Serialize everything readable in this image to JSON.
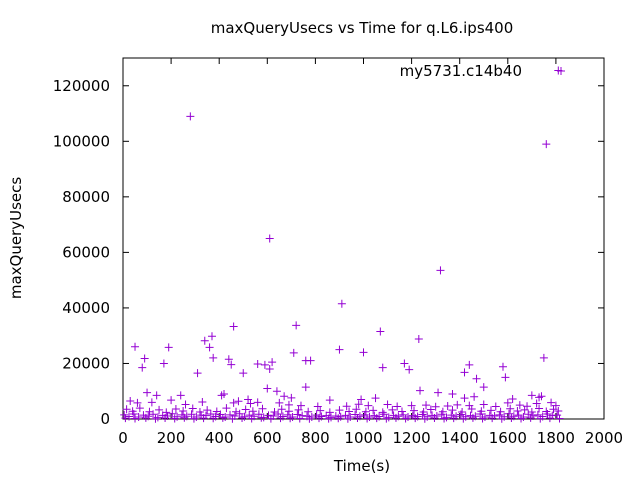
{
  "chart_data": {
    "type": "scatter",
    "title": "maxQueryUsecs vs Time for q.L6.ips400",
    "xlabel": "Time(s)",
    "ylabel": "maxQueryUsecs",
    "xlim": [
      0,
      2000
    ],
    "ylim": [
      0,
      130000
    ],
    "xticks": [
      0,
      200,
      400,
      600,
      800,
      1000,
      1200,
      1400,
      1600,
      1800,
      2000
    ],
    "yticks": [
      0,
      20000,
      40000,
      60000,
      80000,
      100000,
      120000
    ],
    "grid": false,
    "legend_position": "top-right",
    "series": [
      {
        "name": "my5731.c14b40",
        "color": "#9400d3",
        "marker": "plus",
        "points": [
          [
            280,
            109000
          ],
          [
            610,
            65000
          ],
          [
            1320,
            53500
          ],
          [
            1810,
            125500
          ],
          [
            1760,
            99000
          ],
          [
            910,
            41500
          ],
          [
            1070,
            31500
          ],
          [
            720,
            33700
          ],
          [
            460,
            33300
          ],
          [
            370,
            29800
          ],
          [
            340,
            28200
          ],
          [
            1230,
            28800
          ],
          [
            360,
            25800
          ],
          [
            375,
            22000
          ],
          [
            50,
            26000
          ],
          [
            190,
            25800
          ],
          [
            900,
            25000
          ],
          [
            1000,
            24000
          ],
          [
            710,
            23800
          ],
          [
            90,
            21800
          ],
          [
            170,
            20000
          ],
          [
            80,
            18500
          ],
          [
            560,
            19800
          ],
          [
            590,
            19500
          ],
          [
            610,
            18000
          ],
          [
            620,
            20500
          ],
          [
            440,
            21500
          ],
          [
            450,
            19600
          ],
          [
            760,
            21000
          ],
          [
            780,
            21000
          ],
          [
            1170,
            20000
          ],
          [
            1190,
            17800
          ],
          [
            1080,
            18500
          ],
          [
            1440,
            19500
          ],
          [
            1420,
            16800
          ],
          [
            1580,
            18800
          ],
          [
            1590,
            15000
          ],
          [
            1750,
            22000
          ],
          [
            500,
            16500
          ],
          [
            310,
            16500
          ],
          [
            1470,
            14500
          ],
          [
            1500,
            11500
          ],
          [
            760,
            11500
          ],
          [
            600,
            11000
          ],
          [
            1235,
            10200
          ],
          [
            1310,
            9500
          ],
          [
            640,
            10000
          ],
          [
            100,
            9500
          ],
          [
            140,
            8500
          ],
          [
            410,
            8500
          ],
          [
            420,
            9000
          ],
          [
            670,
            8200
          ],
          [
            1370,
            9000
          ],
          [
            1700,
            8500
          ],
          [
            240,
            8500
          ],
          [
            700,
            7600
          ],
          [
            1420,
            7500
          ],
          [
            1460,
            8000
          ],
          [
            1620,
            7200
          ],
          [
            1730,
            7800
          ],
          [
            1740,
            8200
          ],
          [
            1050,
            7500
          ],
          [
            520,
            7000
          ],
          [
            860,
            6800
          ],
          [
            990,
            7000
          ],
          [
            30,
            6500
          ],
          [
            60,
            5800
          ],
          [
            120,
            6000
          ],
          [
            200,
            6800
          ],
          [
            260,
            5200
          ],
          [
            330,
            6100
          ],
          [
            460,
            5800
          ],
          [
            480,
            6400
          ],
          [
            530,
            5600
          ],
          [
            560,
            6000
          ],
          [
            650,
            5800
          ],
          [
            690,
            5100
          ],
          [
            740,
            4800
          ],
          [
            810,
            4500
          ],
          [
            930,
            4600
          ],
          [
            980,
            5300
          ],
          [
            1020,
            4800
          ],
          [
            1100,
            5200
          ],
          [
            1140,
            4500
          ],
          [
            1200,
            4800
          ],
          [
            1260,
            5000
          ],
          [
            1300,
            4400
          ],
          [
            1350,
            4700
          ],
          [
            1390,
            5100
          ],
          [
            1440,
            4800
          ],
          [
            1500,
            5200
          ],
          [
            1550,
            4500
          ],
          [
            1600,
            5800
          ],
          [
            1650,
            5000
          ],
          [
            1680,
            4600
          ],
          [
            1720,
            5600
          ],
          [
            1780,
            5900
          ],
          [
            1800,
            4800
          ],
          [
            15,
            3500
          ],
          [
            40,
            2800
          ],
          [
            70,
            3900
          ],
          [
            110,
            2600
          ],
          [
            150,
            3300
          ],
          [
            180,
            2400
          ],
          [
            220,
            3600
          ],
          [
            250,
            2900
          ],
          [
            290,
            3800
          ],
          [
            320,
            2500
          ],
          [
            350,
            3200
          ],
          [
            390,
            2700
          ],
          [
            430,
            3900
          ],
          [
            470,
            2600
          ],
          [
            510,
            3400
          ],
          [
            540,
            2800
          ],
          [
            580,
            3700
          ],
          [
            630,
            2500
          ],
          [
            660,
            3500
          ],
          [
            690,
            2800
          ],
          [
            730,
            3300
          ],
          [
            770,
            2600
          ],
          [
            820,
            3000
          ],
          [
            860,
            2400
          ],
          [
            900,
            3200
          ],
          [
            940,
            2700
          ],
          [
            970,
            3500
          ],
          [
            1010,
            2600
          ],
          [
            1040,
            3100
          ],
          [
            1080,
            2400
          ],
          [
            1120,
            3300
          ],
          [
            1160,
            2700
          ],
          [
            1210,
            3000
          ],
          [
            1250,
            2500
          ],
          [
            1280,
            3400
          ],
          [
            1330,
            2600
          ],
          [
            1370,
            3200
          ],
          [
            1410,
            2500
          ],
          [
            1450,
            3600
          ],
          [
            1490,
            2800
          ],
          [
            1530,
            3100
          ],
          [
            1570,
            2600
          ],
          [
            1610,
            3700
          ],
          [
            1640,
            2900
          ],
          [
            1670,
            3300
          ],
          [
            1700,
            2500
          ],
          [
            1730,
            3800
          ],
          [
            1760,
            2700
          ],
          [
            1790,
            3500
          ],
          [
            1810,
            2900
          ],
          [
            5,
            1500
          ],
          [
            25,
            900
          ],
          [
            45,
            1800
          ],
          [
            65,
            700
          ],
          [
            85,
            1400
          ],
          [
            105,
            1000
          ],
          [
            125,
            1700
          ],
          [
            145,
            600
          ],
          [
            165,
            1300
          ],
          [
            185,
            1100
          ],
          [
            205,
            1900
          ],
          [
            225,
            800
          ],
          [
            245,
            1500
          ],
          [
            265,
            1000
          ],
          [
            285,
            1700
          ],
          [
            305,
            700
          ],
          [
            325,
            1400
          ],
          [
            345,
            1200
          ],
          [
            365,
            1800
          ],
          [
            385,
            900
          ],
          [
            405,
            1600
          ],
          [
            425,
            700
          ],
          [
            445,
            1500
          ],
          [
            465,
            1100
          ],
          [
            485,
            1900
          ],
          [
            505,
            800
          ],
          [
            525,
            1400
          ],
          [
            545,
            1000
          ],
          [
            565,
            1700
          ],
          [
            585,
            600
          ],
          [
            605,
            1300
          ],
          [
            625,
            1100
          ],
          [
            645,
            1800
          ],
          [
            665,
            900
          ],
          [
            685,
            1500
          ],
          [
            705,
            700
          ],
          [
            725,
            1600
          ],
          [
            745,
            1200
          ],
          [
            765,
            1000
          ],
          [
            785,
            700
          ],
          [
            805,
            1400
          ],
          [
            825,
            900
          ],
          [
            845,
            1200
          ],
          [
            865,
            600
          ],
          [
            885,
            1100
          ],
          [
            905,
            800
          ],
          [
            925,
            1300
          ],
          [
            945,
            700
          ],
          [
            965,
            1600
          ],
          [
            985,
            1000
          ],
          [
            1005,
            1500
          ],
          [
            1025,
            700
          ],
          [
            1045,
            1200
          ],
          [
            1065,
            900
          ],
          [
            1085,
            1700
          ],
          [
            1105,
            600
          ],
          [
            1125,
            1300
          ],
          [
            1145,
            1000
          ],
          [
            1165,
            1500
          ],
          [
            1185,
            700
          ],
          [
            1205,
            1200
          ],
          [
            1225,
            900
          ],
          [
            1245,
            1600
          ],
          [
            1265,
            800
          ],
          [
            1285,
            1300
          ],
          [
            1305,
            1100
          ],
          [
            1325,
            1700
          ],
          [
            1345,
            600
          ],
          [
            1365,
            1400
          ],
          [
            1385,
            1000
          ],
          [
            1405,
            1600
          ],
          [
            1425,
            800
          ],
          [
            1445,
            1200
          ],
          [
            1465,
            1000
          ],
          [
            1485,
            1800
          ],
          [
            1505,
            700
          ],
          [
            1525,
            1300
          ],
          [
            1545,
            1100
          ],
          [
            1565,
            1500
          ],
          [
            1585,
            800
          ],
          [
            1605,
            1900
          ],
          [
            1625,
            1000
          ],
          [
            1645,
            1400
          ],
          [
            1665,
            700
          ],
          [
            1685,
            1700
          ],
          [
            1705,
            1100
          ],
          [
            1725,
            1500
          ],
          [
            1745,
            900
          ],
          [
            1765,
            1800
          ],
          [
            1785,
            1200
          ],
          [
            1805,
            1400
          ],
          [
            10,
            300
          ],
          [
            50,
            200
          ],
          [
            95,
            400
          ],
          [
            135,
            100
          ],
          [
            175,
            350
          ],
          [
            215,
            200
          ],
          [
            255,
            450
          ],
          [
            295,
            150
          ],
          [
            335,
            300
          ],
          [
            375,
            250
          ],
          [
            415,
            400
          ],
          [
            455,
            100
          ],
          [
            495,
            350
          ],
          [
            535,
            200
          ],
          [
            575,
            450
          ],
          [
            615,
            150
          ],
          [
            655,
            300
          ],
          [
            695,
            250
          ],
          [
            735,
            200
          ],
          [
            775,
            100
          ],
          [
            815,
            300
          ],
          [
            855,
            150
          ],
          [
            895,
            250
          ],
          [
            935,
            100
          ],
          [
            975,
            350
          ],
          [
            1015,
            200
          ],
          [
            1055,
            300
          ],
          [
            1095,
            150
          ],
          [
            1135,
            400
          ],
          [
            1175,
            200
          ],
          [
            1215,
            300
          ],
          [
            1255,
            100
          ],
          [
            1295,
            350
          ],
          [
            1335,
            200
          ],
          [
            1375,
            300
          ],
          [
            1415,
            150
          ],
          [
            1455,
            400
          ],
          [
            1495,
            200
          ],
          [
            1535,
            300
          ],
          [
            1575,
            100
          ],
          [
            1615,
            350
          ],
          [
            1655,
            200
          ],
          [
            1695,
            400
          ],
          [
            1735,
            150
          ],
          [
            1775,
            300
          ],
          [
            1815,
            200
          ]
        ]
      }
    ]
  }
}
